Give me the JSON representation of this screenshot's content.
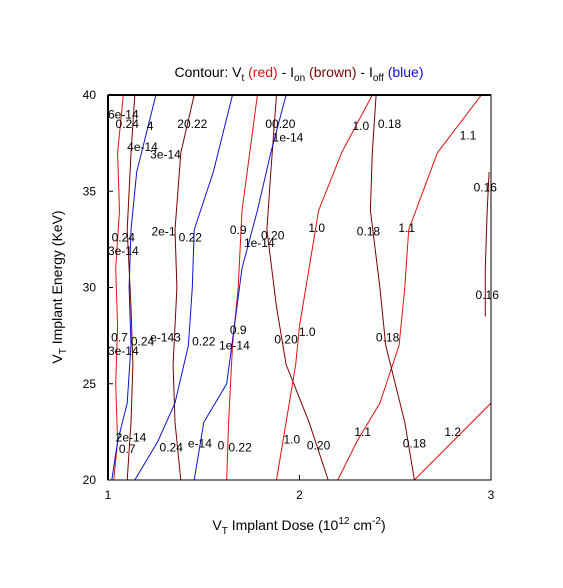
{
  "chart_data": {
    "type": "contour",
    "title": {
      "prefix": "Contour: V",
      "vt_sub": "t",
      "sep1": " - I",
      "on_sub": "on",
      "sep2": " - I",
      "off_sub": "off",
      "red_word": "(red)",
      "brown_word": "(brown)",
      "blue_word": "(blue)"
    },
    "xlabel": {
      "prefix": "V",
      "sub": "T",
      "main": " Implant Dose (10",
      "sup": "12",
      "unit": " cm",
      "unit_sup": "-2",
      "close": ")"
    },
    "ylabel": {
      "prefix": "V",
      "sub": "T",
      "main": " Implant Energy (KeV)"
    },
    "xlim": [
      1,
      3
    ],
    "ylim": [
      20,
      40
    ],
    "xticks": [
      "1",
      "2",
      "3"
    ],
    "yticks": [
      "20",
      "25",
      "30",
      "35",
      "40"
    ],
    "colors": {
      "vt": "#e01010",
      "ion": "#7a0000",
      "ioff": "#1010d0"
    },
    "series": [
      {
        "kind": "vt",
        "label": "0.7",
        "points": [
          [
            1.03,
            20
          ],
          [
            1.05,
            22
          ],
          [
            1.04,
            25
          ],
          [
            1.05,
            28
          ],
          [
            1.04,
            31
          ],
          [
            1.06,
            34
          ],
          [
            1.05,
            37
          ],
          [
            1.08,
            40
          ]
        ]
      },
      {
        "kind": "vt",
        "label": "0.9",
        "points": [
          [
            1.62,
            20
          ],
          [
            1.63,
            23
          ],
          [
            1.65,
            27
          ],
          [
            1.68,
            30
          ],
          [
            1.7,
            34
          ],
          [
            1.74,
            37
          ],
          [
            1.78,
            40
          ]
        ]
      },
      {
        "kind": "vt",
        "label": "1.0",
        "points": [
          [
            1.88,
            20
          ],
          [
            1.93,
            23
          ],
          [
            1.98,
            26
          ],
          [
            2.0,
            28
          ],
          [
            2.05,
            31
          ],
          [
            2.1,
            34
          ],
          [
            2.22,
            37
          ],
          [
            2.38,
            40
          ]
        ]
      },
      {
        "kind": "vt",
        "label": "1.1",
        "points": [
          [
            2.2,
            20
          ],
          [
            2.3,
            22
          ],
          [
            2.42,
            24
          ],
          [
            2.52,
            27
          ],
          [
            2.55,
            30
          ],
          [
            2.57,
            33
          ],
          [
            2.72,
            37
          ],
          [
            2.95,
            40
          ]
        ]
      },
      {
        "kind": "vt",
        "label": "1.2",
        "points": [
          [
            2.6,
            20
          ],
          [
            2.8,
            22
          ],
          [
            3.0,
            24
          ]
        ]
      },
      {
        "kind": "ion",
        "label": "0.24",
        "points": [
          [
            1.1,
            20
          ],
          [
            1.12,
            23
          ],
          [
            1.13,
            26
          ],
          [
            1.12,
            29
          ],
          [
            1.1,
            33
          ],
          [
            1.12,
            37
          ],
          [
            1.14,
            40
          ]
        ]
      },
      {
        "kind": "ion",
        "label": "0.22",
        "points": [
          [
            1.38,
            20
          ],
          [
            1.35,
            23
          ],
          [
            1.34,
            26
          ],
          [
            1.36,
            30
          ],
          [
            1.35,
            33
          ],
          [
            1.38,
            37
          ],
          [
            1.45,
            40
          ]
        ]
      },
      {
        "kind": "ion",
        "label": "0.20",
        "points": [
          [
            2.15,
            20
          ],
          [
            2.05,
            23
          ],
          [
            1.93,
            26
          ],
          [
            1.88,
            29
          ],
          [
            1.83,
            33
          ],
          [
            1.85,
            36
          ],
          [
            1.88,
            40
          ]
        ]
      },
      {
        "kind": "ion",
        "label": "0.18",
        "points": [
          [
            2.6,
            20
          ],
          [
            2.55,
            23
          ],
          [
            2.45,
            27
          ],
          [
            2.42,
            30
          ],
          [
            2.37,
            34
          ],
          [
            2.38,
            37
          ],
          [
            2.4,
            40
          ]
        ]
      },
      {
        "kind": "ion",
        "label": "0.16",
        "points": [
          [
            2.97,
            28.5
          ],
          [
            2.97,
            31
          ],
          [
            2.98,
            34
          ],
          [
            2.99,
            36
          ]
        ]
      },
      {
        "kind": "ioff",
        "label": "2e-14",
        "points": [
          [
            1.02,
            20
          ],
          [
            1.05,
            22
          ],
          [
            1.1,
            24
          ],
          [
            1.12,
            27
          ],
          [
            1.11,
            30
          ],
          [
            1.12,
            33
          ],
          [
            1.15,
            36
          ],
          [
            1.2,
            38
          ],
          [
            1.25,
            40
          ]
        ]
      },
      {
        "kind": "ioff",
        "label": "3e-14",
        "points": [
          [
            1.14,
            20
          ],
          [
            1.26,
            22
          ],
          [
            1.35,
            24
          ],
          [
            1.42,
            27
          ],
          [
            1.44,
            30
          ],
          [
            1.45,
            33
          ],
          [
            1.55,
            36
          ],
          [
            1.6,
            38
          ],
          [
            1.65,
            40
          ]
        ]
      },
      {
        "kind": "ioff",
        "label": "1e-14",
        "points": [
          [
            1.45,
            20
          ],
          [
            1.5,
            23
          ],
          [
            1.62,
            25
          ],
          [
            1.66,
            28
          ],
          [
            1.7,
            31
          ],
          [
            1.78,
            34
          ],
          [
            1.85,
            37
          ],
          [
            1.93,
            40
          ]
        ]
      }
    ],
    "labels": [
      {
        "text": "0.24",
        "x": 1.1,
        "y": 38.5,
        "kind": "ion"
      },
      {
        "text": "4",
        "x": 1.22,
        "y": 38.4,
        "kind": "ion"
      },
      {
        "text": "4e-14",
        "x": 1.18,
        "y": 37.3,
        "kind": "ioff"
      },
      {
        "text": "3e-14",
        "x": 1.3,
        "y": 36.9,
        "kind": "ioff"
      },
      {
        "text": "6e-14",
        "x": 1.08,
        "y": 39.0,
        "kind": "ioff"
      },
      {
        "text": "20.22",
        "x": 1.44,
        "y": 38.5,
        "kind": "ion"
      },
      {
        "text": "00.20",
        "x": 1.9,
        "y": 38.5,
        "kind": "ion"
      },
      {
        "text": "1e-14",
        "x": 1.94,
        "y": 37.8,
        "kind": "ioff"
      },
      {
        "text": "1.0",
        "x": 2.32,
        "y": 38.4,
        "kind": "vt"
      },
      {
        "text": "0.18",
        "x": 2.47,
        "y": 38.5,
        "kind": "ion"
      },
      {
        "text": "1.1",
        "x": 2.88,
        "y": 37.9,
        "kind": "vt"
      },
      {
        "text": "0.16",
        "x": 2.97,
        "y": 35.2,
        "kind": "ion"
      },
      {
        "text": "0.24",
        "x": 1.08,
        "y": 32.6,
        "kind": "ion"
      },
      {
        "text": "3e-14",
        "x": 1.08,
        "y": 31.9,
        "kind": "ioff"
      },
      {
        "text": "2e-1",
        "x": 1.29,
        "y": 32.9,
        "kind": "ioff"
      },
      {
        "text": "0.22",
        "x": 1.43,
        "y": 32.6,
        "kind": "ion"
      },
      {
        "text": "0.9",
        "x": 1.68,
        "y": 33.0,
        "kind": "vt"
      },
      {
        "text": "1e-14",
        "x": 1.79,
        "y": 32.3,
        "kind": "ioff"
      },
      {
        "text": "0.20",
        "x": 1.86,
        "y": 32.7,
        "kind": "ion"
      },
      {
        "text": "1.0",
        "x": 2.09,
        "y": 33.1,
        "kind": "vt"
      },
      {
        "text": "0.18",
        "x": 2.36,
        "y": 32.9,
        "kind": "ion"
      },
      {
        "text": "1.1",
        "x": 2.56,
        "y": 33.1,
        "kind": "vt"
      },
      {
        "text": "0.16",
        "x": 2.98,
        "y": 29.6,
        "kind": "ion"
      },
      {
        "text": "0.7",
        "x": 1.06,
        "y": 27.4,
        "kind": "vt"
      },
      {
        "text": "0.24",
        "x": 1.18,
        "y": 27.2,
        "kind": "ion"
      },
      {
        "text": "3e-14",
        "x": 1.08,
        "y": 26.7,
        "kind": "ioff"
      },
      {
        "text": "e-143",
        "x": 1.3,
        "y": 27.4,
        "kind": "ioff"
      },
      {
        "text": "0.22",
        "x": 1.5,
        "y": 27.2,
        "kind": "ion"
      },
      {
        "text": "0.9",
        "x": 1.68,
        "y": 27.8,
        "kind": "vt"
      },
      {
        "text": "1e-14",
        "x": 1.66,
        "y": 27.0,
        "kind": "ioff"
      },
      {
        "text": "0.20",
        "x": 1.93,
        "y": 27.3,
        "kind": "ion"
      },
      {
        "text": "1.0",
        "x": 2.04,
        "y": 27.7,
        "kind": "vt"
      },
      {
        "text": "0.18",
        "x": 2.46,
        "y": 27.4,
        "kind": "ion"
      },
      {
        "text": "2e-14",
        "x": 1.12,
        "y": 22.2,
        "kind": "ioff"
      },
      {
        "text": "0.7",
        "x": 1.1,
        "y": 21.6,
        "kind": "vt"
      },
      {
        "text": "0.24",
        "x": 1.33,
        "y": 21.7,
        "kind": "ion"
      },
      {
        "text": "e-14",
        "x": 1.48,
        "y": 21.9,
        "kind": "ioff"
      },
      {
        "text": "0",
        "x": 1.59,
        "y": 21.8,
        "kind": "ion"
      },
      {
        "text": "0.22",
        "x": 1.69,
        "y": 21.7,
        "kind": "ion"
      },
      {
        "text": "1.0",
        "x": 1.96,
        "y": 22.1,
        "kind": "vt"
      },
      {
        "text": "0.20",
        "x": 2.1,
        "y": 21.8,
        "kind": "ion"
      },
      {
        "text": "1.1",
        "x": 2.33,
        "y": 22.5,
        "kind": "vt"
      },
      {
        "text": "0.18",
        "x": 2.6,
        "y": 21.9,
        "kind": "ion"
      },
      {
        "text": "1.2",
        "x": 2.8,
        "y": 22.5,
        "kind": "vt"
      }
    ]
  }
}
